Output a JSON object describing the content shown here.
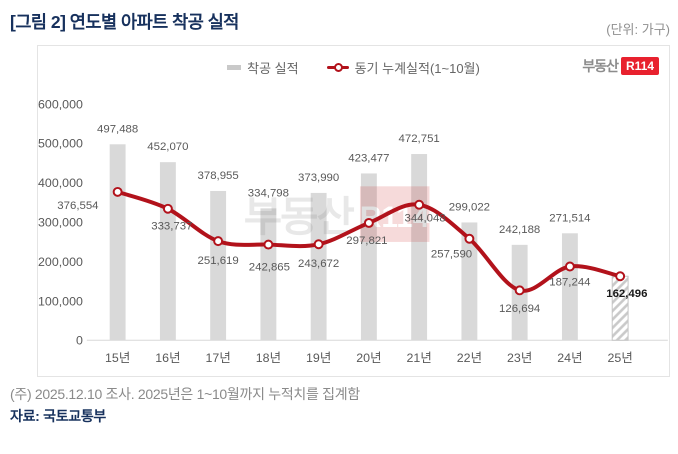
{
  "header": {
    "title": "[그림 2] 연도별 아파트 착공 실적",
    "unit": "(단위: 가구)"
  },
  "legend": {
    "bar_label": "착공 실적",
    "line_label": "동기 누계실적(1~10월)"
  },
  "logo": {
    "text": "부동산",
    "badge": "R114"
  },
  "watermark": {
    "text": "부동산",
    "badge": "R114"
  },
  "chart_data": {
    "type": "bar",
    "title": "연도별 아파트 착공 실적",
    "xlabel": "",
    "ylabel": "가구",
    "categories": [
      "15년",
      "16년",
      "17년",
      "18년",
      "19년",
      "20년",
      "21년",
      "22년",
      "23년",
      "24년",
      "25년"
    ],
    "series": [
      {
        "name": "착공 실적",
        "type": "bar",
        "values": [
          497488,
          452070,
          378955,
          334798,
          373990,
          423477,
          472751,
          299022,
          242188,
          271514,
          162496
        ]
      },
      {
        "name": "동기 누계실적(1~10월)",
        "type": "line",
        "values": [
          376554,
          333737,
          251619,
          242865,
          243672,
          297821,
          344048,
          257590,
          126694,
          187244,
          162496
        ]
      }
    ],
    "ylim": [
      0,
      600000
    ],
    "yticks": [
      0,
      100000,
      200000,
      300000,
      400000,
      500000,
      600000
    ],
    "grid": false,
    "legend_position": "top",
    "notes": "마지막(25년) 막대는 빗금 패턴, 값 162,496은 굵게 표시",
    "colors": {
      "bar": "#d9d9d9",
      "line": "#b2121b",
      "label": "#595959",
      "emph_label": "#1a1a1a"
    }
  },
  "footer": {
    "note": "(주) 2025.12.10 조사. 2025년은 1~10월까지 누적치를 집계함",
    "source": "자료: 국토교통부"
  }
}
